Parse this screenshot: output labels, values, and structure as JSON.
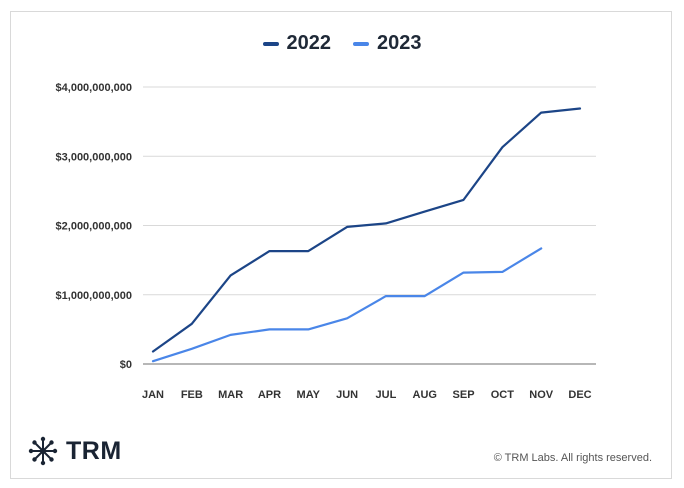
{
  "chart_data": {
    "type": "line",
    "categories": [
      "JAN",
      "FEB",
      "MAR",
      "APR",
      "MAY",
      "JUN",
      "JUL",
      "AUG",
      "SEP",
      "OCT",
      "NOV",
      "DEC"
    ],
    "series": [
      {
        "name": "2022",
        "color": "#1c4587",
        "values": [
          180000000,
          580000000,
          1280000000,
          1630000000,
          1630000000,
          1980000000,
          2030000000,
          2200000000,
          2370000000,
          3130000000,
          3630000000,
          3690000000
        ]
      },
      {
        "name": "2023",
        "color": "#4a86e8",
        "values": [
          40000000,
          220000000,
          420000000,
          500000000,
          500000000,
          660000000,
          980000000,
          980000000,
          1320000000,
          1330000000,
          1670000000,
          null
        ]
      }
    ],
    "ylim": [
      0,
      4000000000
    ],
    "yticks": [
      0,
      1000000000,
      2000000000,
      3000000000,
      4000000000
    ],
    "ytick_labels": [
      "$0",
      "$1,000,000,000",
      "$2,000,000,000",
      "$3,000,000,000",
      "$4,000,000,000"
    ],
    "grid": true,
    "legend_position": "top-center",
    "title": "",
    "xlabel": "",
    "ylabel": ""
  },
  "footer": {
    "logo_text": "TRM",
    "copyright": "© TRM Labs. All rights reserved."
  },
  "icons": {
    "logo": "trm-network-icon"
  }
}
